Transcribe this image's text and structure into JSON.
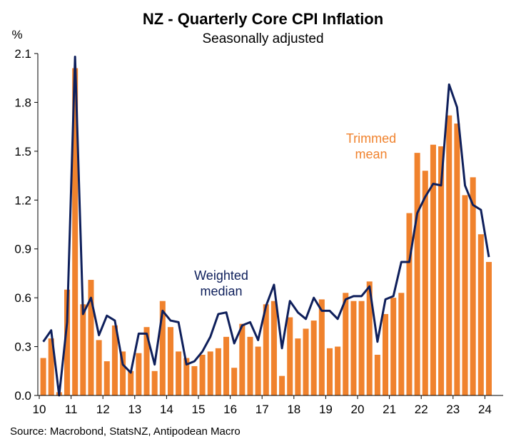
{
  "title": "NZ - Quarterly Core CPI Inflation",
  "subtitle": "Seasonally adjusted",
  "source": "Source: Macrobond, StatsNZ, Antipodean Macro",
  "colors": {
    "trimmed_mean": "#F0822D",
    "weighted_median": "#0E1F5B"
  },
  "chart_data": {
    "type": "bar",
    "ylabel": "%",
    "ylim": [
      0,
      2.1
    ],
    "yticks": [
      "0.0",
      "0.3",
      "0.6",
      "0.9",
      "1.2",
      "1.5",
      "1.8",
      "2.1"
    ],
    "xticks": [
      "10",
      "11",
      "12",
      "13",
      "14",
      "15",
      "16",
      "17",
      "18",
      "19",
      "20",
      "21",
      "22",
      "23",
      "24"
    ],
    "grid": false,
    "x": [
      "2010Q1",
      "2010Q2",
      "2010Q3",
      "2010Q4",
      "2011Q1",
      "2011Q2",
      "2011Q3",
      "2011Q4",
      "2012Q1",
      "2012Q2",
      "2012Q3",
      "2012Q4",
      "2013Q1",
      "2013Q2",
      "2013Q3",
      "2013Q4",
      "2014Q1",
      "2014Q2",
      "2014Q3",
      "2014Q4",
      "2015Q1",
      "2015Q2",
      "2015Q3",
      "2015Q4",
      "2016Q1",
      "2016Q2",
      "2016Q3",
      "2016Q4",
      "2017Q1",
      "2017Q2",
      "2017Q3",
      "2017Q4",
      "2018Q1",
      "2018Q2",
      "2018Q3",
      "2018Q4",
      "2019Q1",
      "2019Q2",
      "2019Q3",
      "2019Q4",
      "2020Q1",
      "2020Q2",
      "2020Q3",
      "2020Q4",
      "2021Q1",
      "2021Q2",
      "2021Q3",
      "2021Q4",
      "2022Q1",
      "2022Q2",
      "2022Q3",
      "2022Q4",
      "2023Q1",
      "2023Q2",
      "2023Q3",
      "2023Q4",
      "2024Q1"
    ],
    "series": [
      {
        "name": "Trimmed mean",
        "type": "bar",
        "values": [
          0.23,
          0.35,
          0.02,
          0.65,
          2.01,
          0.56,
          0.71,
          0.34,
          0.21,
          0.43,
          0.27,
          0.15,
          0.26,
          0.42,
          0.15,
          0.58,
          0.42,
          0.27,
          0.23,
          0.18,
          0.25,
          0.27,
          0.29,
          0.36,
          0.17,
          0.44,
          0.36,
          0.3,
          0.56,
          0.58,
          0.12,
          0.48,
          0.35,
          0.41,
          0.46,
          0.59,
          0.29,
          0.3,
          0.63,
          0.58,
          0.58,
          0.7,
          0.25,
          0.5,
          0.6,
          0.63,
          1.12,
          1.49,
          1.38,
          1.54,
          1.53,
          1.72,
          1.67,
          1.23,
          1.34,
          0.99,
          0.82
        ]
      },
      {
        "name": "Weighted median",
        "type": "line",
        "values": [
          0.33,
          0.4,
          0.0,
          0.45,
          2.08,
          0.5,
          0.6,
          0.37,
          0.49,
          0.46,
          0.19,
          0.14,
          0.38,
          0.38,
          0.19,
          0.52,
          0.46,
          0.45,
          0.19,
          0.21,
          0.27,
          0.36,
          0.5,
          0.51,
          0.32,
          0.43,
          0.45,
          0.34,
          0.55,
          0.68,
          0.29,
          0.58,
          0.51,
          0.47,
          0.6,
          0.52,
          0.52,
          0.47,
          0.59,
          0.61,
          0.61,
          0.67,
          0.33,
          0.59,
          0.61,
          0.82,
          0.82,
          1.12,
          1.22,
          1.3,
          1.29,
          1.91,
          1.77,
          1.29,
          1.17,
          1.14,
          0.85
        ]
      }
    ],
    "annotations": [
      {
        "lines": [
          "Trimmed",
          "mean"
        ],
        "series": "Trimmed mean"
      },
      {
        "lines": [
          "Weighted",
          "median"
        ],
        "series": "Weighted median"
      }
    ]
  }
}
